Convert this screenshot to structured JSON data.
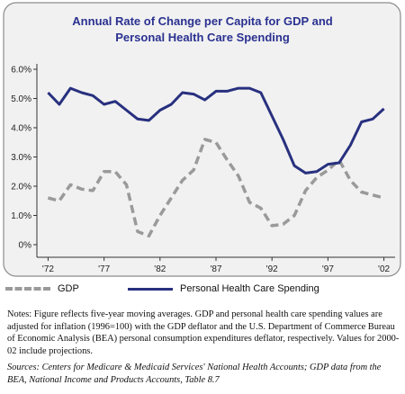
{
  "chart_data": {
    "type": "line",
    "title_lines": [
      "Annual Rate of Change per Capita for GDP and",
      "Personal Health Care Spending"
    ],
    "xlabel": "",
    "ylabel": "",
    "xlim": [
      1971,
      2003
    ],
    "ylim": [
      0,
      6
    ],
    "grid": false,
    "legend_position": "bottom",
    "y_ticks": [
      {
        "value": 0,
        "label": "0%"
      },
      {
        "value": 1,
        "label": "1.0%"
      },
      {
        "value": 2,
        "label": "2.0%"
      },
      {
        "value": 3,
        "label": "3.0%"
      },
      {
        "value": 4,
        "label": "4.0%"
      },
      {
        "value": 5,
        "label": "5.0%"
      },
      {
        "value": 6,
        "label": "6.0%"
      }
    ],
    "x_ticks": [
      {
        "value": 1972,
        "label": "'72"
      },
      {
        "value": 1977,
        "label": "'77"
      },
      {
        "value": 1982,
        "label": "'82"
      },
      {
        "value": 1987,
        "label": "'87"
      },
      {
        "value": 1992,
        "label": "'92"
      },
      {
        "value": 1997,
        "label": "'97"
      },
      {
        "value": 2002,
        "label": "'02"
      }
    ],
    "x": [
      1972,
      1973,
      1974,
      1975,
      1976,
      1977,
      1978,
      1979,
      1980,
      1981,
      1982,
      1983,
      1984,
      1985,
      1986,
      1987,
      1988,
      1989,
      1990,
      1991,
      1992,
      1993,
      1994,
      1995,
      1996,
      1997,
      1998,
      1999,
      2000,
      2001,
      2002
    ],
    "series": [
      {
        "name": "GDP",
        "color": "#9a9a9a",
        "dash": true,
        "values": [
          1.6,
          1.5,
          2.05,
          1.9,
          1.85,
          2.5,
          2.5,
          2.05,
          0.45,
          0.3,
          1.0,
          1.6,
          2.2,
          2.55,
          3.6,
          3.5,
          2.9,
          2.35,
          1.45,
          1.25,
          0.65,
          0.7,
          1.0,
          1.85,
          2.3,
          2.55,
          2.9,
          2.2,
          1.8,
          1.7,
          1.6
        ]
      },
      {
        "name": "Personal Health Care Spending",
        "color": "#28307f",
        "dash": false,
        "values": [
          5.2,
          4.8,
          5.35,
          5.2,
          5.1,
          4.8,
          4.9,
          4.6,
          4.3,
          4.25,
          4.6,
          4.8,
          5.2,
          5.15,
          4.95,
          5.25,
          5.25,
          5.35,
          5.35,
          5.2,
          4.4,
          3.6,
          2.7,
          2.45,
          2.5,
          2.75,
          2.8,
          3.4,
          4.2,
          4.3,
          4.65
        ]
      }
    ]
  },
  "colors": {
    "panel_fill": "#f1f1f1",
    "panel_border": "#8c8c8c",
    "title": "#2a3190",
    "gdp": "#9a9a9a",
    "phc": "#28307f"
  },
  "notes": "Notes: Figure reflects five-year moving averages. GDP and personal health care spending values are adjusted for inflation (1996=100) with the GDP deflator and the U.S. Department of Commerce Bureau of Economic Analysis (BEA) personal consumption expenditures deflator, respectively. Values for 2000-02 include projections.",
  "sources": "Sources: Centers for Medicare & Medicaid Services' National Health Accounts; GDP data from the BEA, National Income and Products Accounts, Table 8.7"
}
